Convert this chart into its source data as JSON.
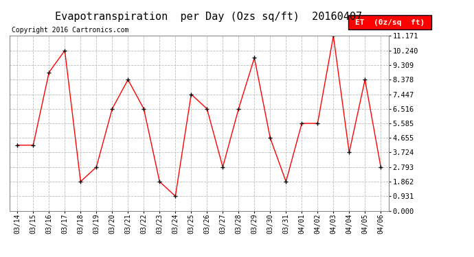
{
  "title": "Evapotranspiration  per Day (Ozs sq/ft)  20160407",
  "copyright": "Copyright 2016 Cartronics.com",
  "legend_label": "ET  (0z/sq  ft)",
  "dates": [
    "03/14",
    "03/15",
    "03/16",
    "03/17",
    "03/18",
    "03/19",
    "03/20",
    "03/21",
    "03/22",
    "03/23",
    "03/24",
    "03/25",
    "03/26",
    "03/27",
    "03/28",
    "03/29",
    "03/30",
    "03/31",
    "04/01",
    "04/02",
    "04/03",
    "04/04",
    "04/05",
    "04/06"
  ],
  "values": [
    4.19,
    4.19,
    8.843,
    10.241,
    1.862,
    2.793,
    6.516,
    8.378,
    6.516,
    1.862,
    0.931,
    7.447,
    6.516,
    2.793,
    6.516,
    9.774,
    4.655,
    1.862,
    5.585,
    5.585,
    11.171,
    3.724,
    8.378,
    2.793
  ],
  "line_color": "#ff0000",
  "marker_color": "#000000",
  "background_color": "#ffffff",
  "grid_color": "#bbbbbb",
  "yticks": [
    0.0,
    0.931,
    1.862,
    2.793,
    3.724,
    4.655,
    5.585,
    6.516,
    7.447,
    8.378,
    9.309,
    10.24,
    11.171
  ],
  "ylim": [
    0.0,
    11.171
  ],
  "title_fontsize": 11,
  "copyright_fontsize": 7,
  "legend_fontsize": 8
}
